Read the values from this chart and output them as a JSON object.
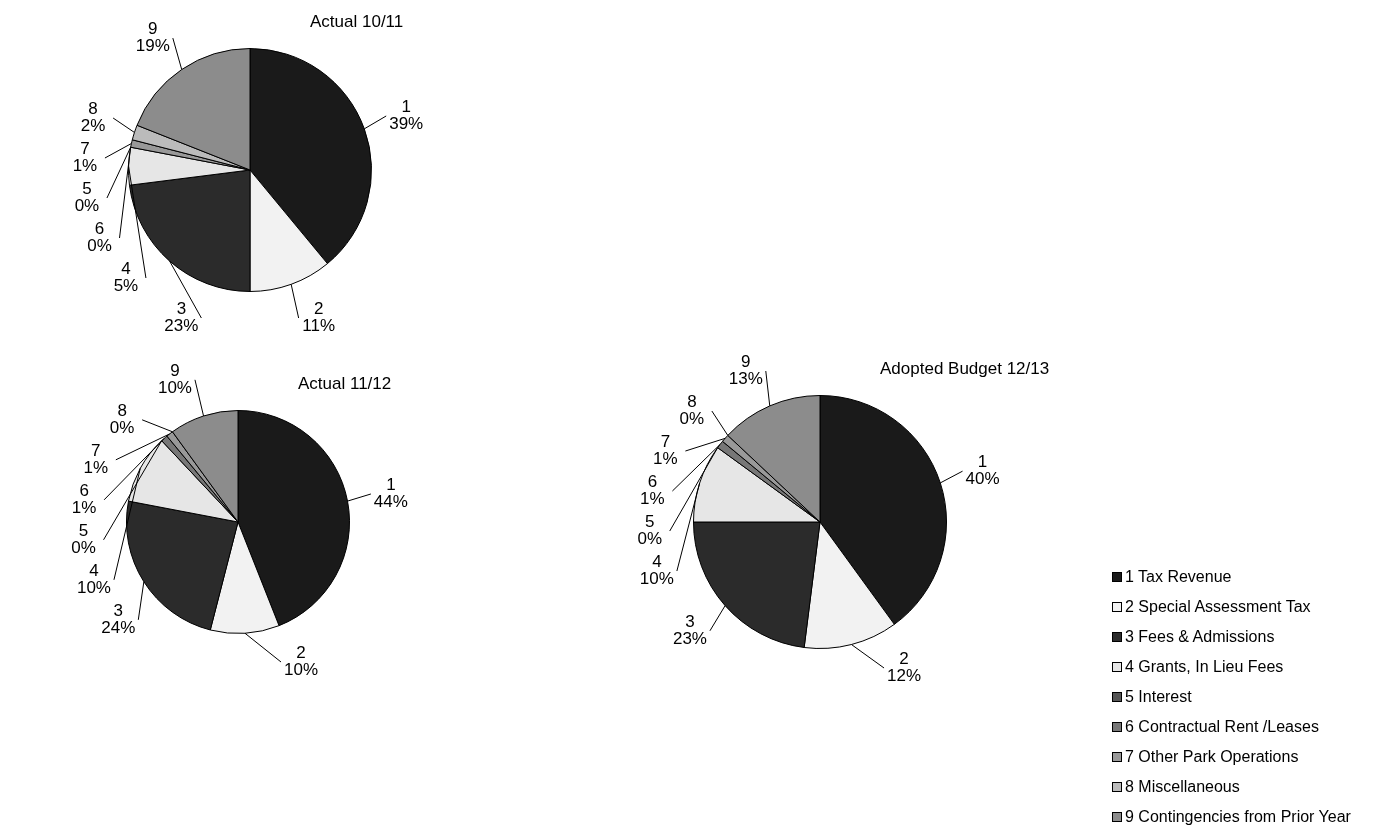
{
  "chart_data": [
    {
      "type": "pie",
      "title": "Actual 10/11",
      "categories": [
        "1",
        "2",
        "3",
        "4",
        "5",
        "6",
        "7",
        "8",
        "9"
      ],
      "values": [
        39,
        11,
        23,
        5,
        0,
        0,
        1,
        2,
        19
      ],
      "value_labels": [
        "39%",
        "11%",
        "23%",
        "5%",
        "0%",
        "0%",
        "1%",
        "2%",
        "19%"
      ],
      "colors": [
        "#1a1a1a",
        "#f2f2f2",
        "#2b2b2b",
        "#e6e6e6",
        "#555555",
        "#777777",
        "#999999",
        "#bbbbbb",
        "#8c8c8c"
      ],
      "legend": false
    },
    {
      "type": "pie",
      "title": "Actual 11/12",
      "categories": [
        "1",
        "2",
        "3",
        "4",
        "5",
        "6",
        "7",
        "8",
        "9"
      ],
      "values": [
        44,
        10,
        24,
        10,
        0,
        1,
        1,
        0,
        10
      ],
      "value_labels": [
        "44%",
        "10%",
        "24%",
        "10%",
        "0%",
        "1%",
        "1%",
        "0%",
        "10%"
      ],
      "colors": [
        "#1a1a1a",
        "#f2f2f2",
        "#2b2b2b",
        "#e6e6e6",
        "#555555",
        "#777777",
        "#999999",
        "#bbbbbb",
        "#8c8c8c"
      ],
      "legend": false
    },
    {
      "type": "pie",
      "title": "Adopted Budget 12/13",
      "categories": [
        "1",
        "2",
        "3",
        "4",
        "5",
        "6",
        "7",
        "8",
        "9"
      ],
      "values": [
        40,
        12,
        23,
        10,
        0,
        1,
        1,
        0,
        13
      ],
      "value_labels": [
        "40%",
        "12%",
        "23%",
        "10%",
        "0%",
        "1%",
        "1%",
        "0%",
        "13%"
      ],
      "colors": [
        "#1a1a1a",
        "#f2f2f2",
        "#2b2b2b",
        "#e6e6e6",
        "#555555",
        "#777777",
        "#999999",
        "#bbbbbb",
        "#8c8c8c"
      ],
      "legend": false
    },
    {
      "type": "other",
      "colors": [
        "#1a1a1a",
        "#f2f2f2",
        "#2b2b2b",
        "#e6e6e6",
        "#555555",
        "#777777",
        "#999999",
        "#bbbbbb",
        "#8c8c8c"
      ],
      "annotations": [
        "1 Tax Revenue",
        "2 Special Assessment Tax",
        "3 Fees & Admissions",
        "4 Grants, In Lieu Fees",
        "5 Interest",
        "6 Contractual Rent /Leases",
        "7 Other Park Operations",
        "8 Miscellaneous",
        "9 Contingencies from Prior Year"
      ]
    }
  ]
}
